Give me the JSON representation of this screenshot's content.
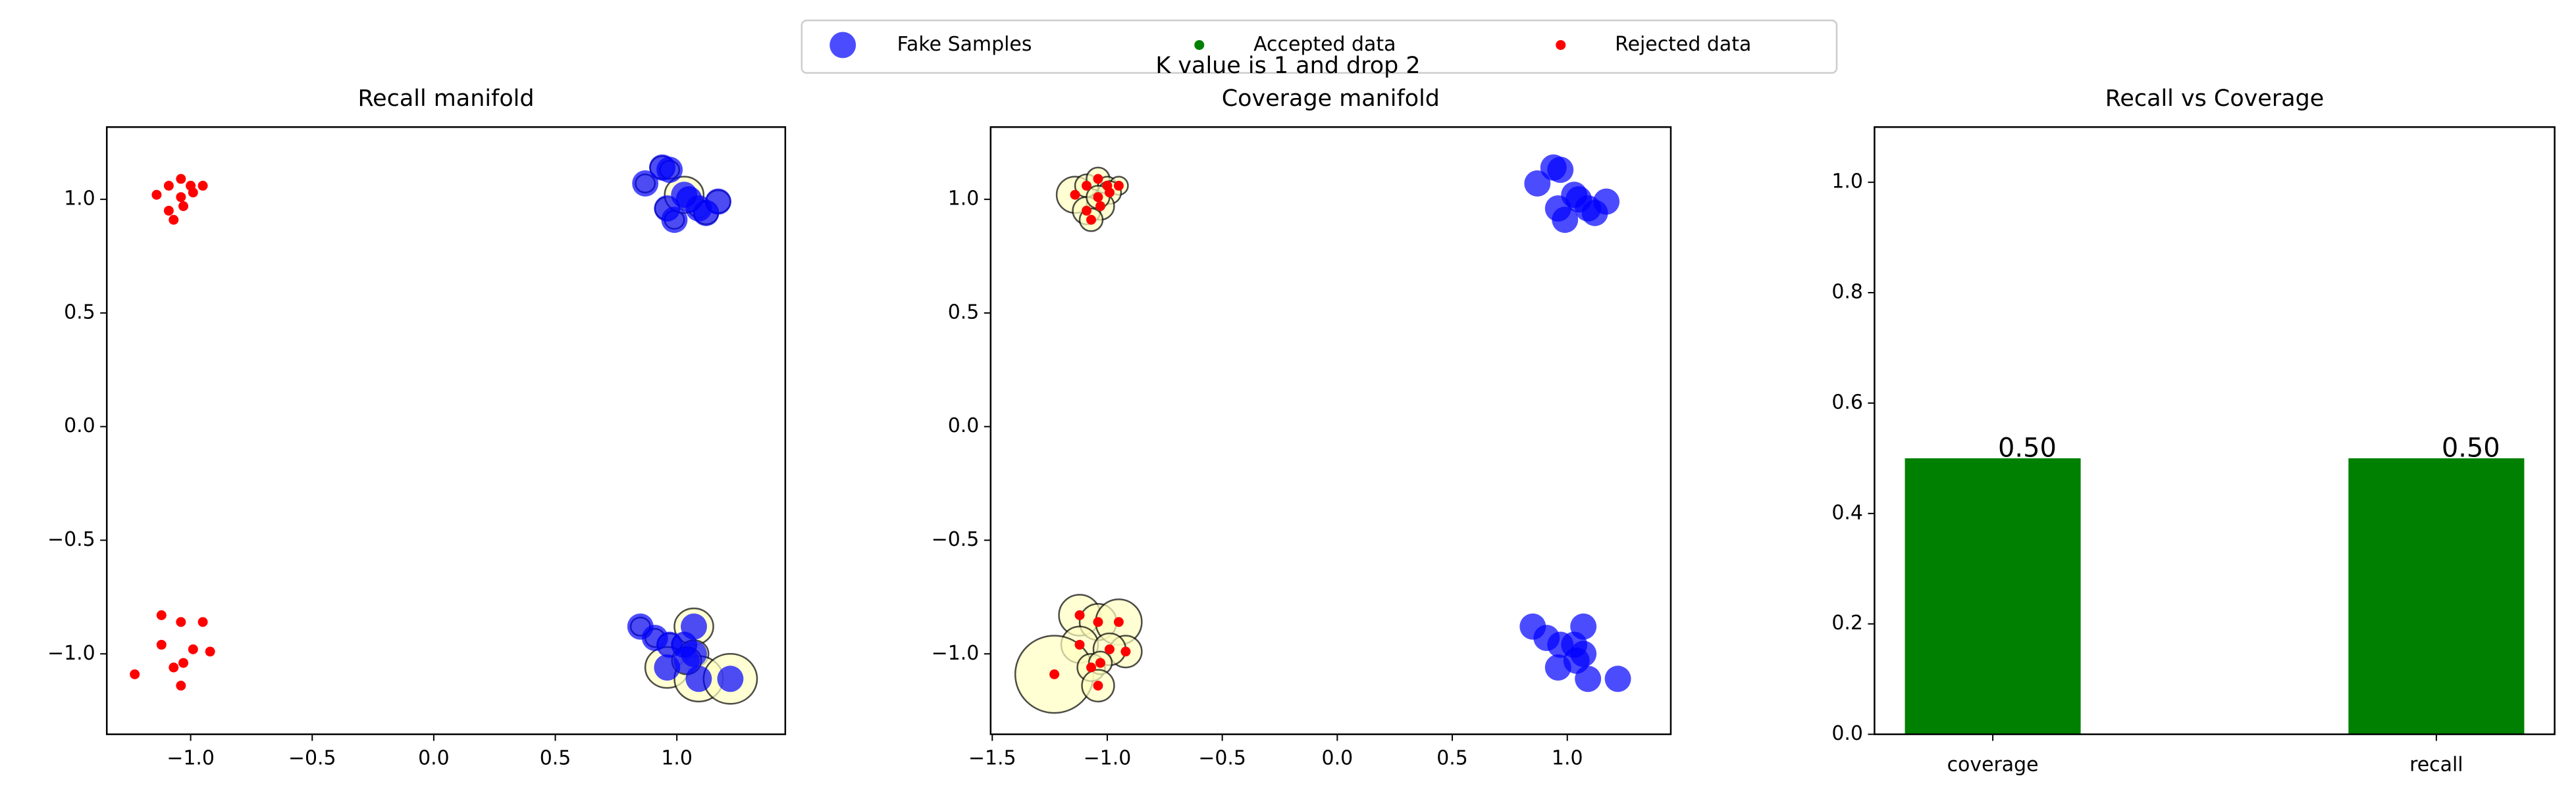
{
  "title": "K value is 1 and drop 2",
  "legend": [
    {
      "name": "Fake Samples",
      "color": "#0000ff"
    },
    {
      "name": "Accepted data",
      "color": "#008000"
    },
    {
      "name": "Rejected data",
      "color": "#ff0000"
    }
  ],
  "chart_data": [
    {
      "type": "scatter",
      "title": "Recall manifold",
      "xlim": [
        -1.345,
        1.446
      ],
      "ylim": [
        -1.354,
        1.318
      ],
      "xticks": [
        {
          "value": -1.0,
          "label": "−1.0"
        },
        {
          "value": -0.5,
          "label": "−0.5"
        },
        {
          "value": 0,
          "label": "0.0"
        },
        0.5,
        {
          "value": 1.0,
          "label": "1.0"
        }
      ],
      "yticks": [
        {
          "value": -1.0,
          "label": "−1.0"
        },
        {
          "value": -0.5,
          "label": "−0.5"
        },
        {
          "value": 0,
          "label": "0.0"
        },
        0.5,
        {
          "value": 1.0,
          "label": "1.0"
        }
      ],
      "circle_color": "#ffffc0",
      "series": [
        {
          "color": "#0000ff",
          "x": [
            0.87,
            0.94,
            0.97,
            0.96,
            1.05,
            0.99,
            1.09,
            1.12,
            1.17,
            1.03,
            0.85,
            0.91,
            0.97,
            1.03,
            1.07,
            1.07,
            0.96,
            1.09,
            1.22,
            1.04
          ],
          "y": [
            1.07,
            1.14,
            1.13,
            0.96,
            1.0,
            0.91,
            0.96,
            0.94,
            0.99,
            1.02,
            -0.88,
            -0.93,
            -0.96,
            -0.96,
            -0.88,
            -1.0,
            -1.06,
            -1.11,
            -1.11,
            -1.03
          ],
          "radii": [
            0.04,
            0.05,
            0.04,
            0.05,
            0.05,
            0.04,
            0.04,
            0.05,
            0.05,
            0.08,
            0.04,
            0.04,
            0.05,
            0.05,
            0.08,
            0.06,
            0.09,
            0.1,
            0.11,
            0.06
          ]
        },
        {
          "color": "#ff0000",
          "x": [
            -1.14,
            -1.09,
            -1.04,
            -1.0,
            -0.95,
            -0.99,
            -1.03,
            -1.09,
            -1.07,
            -1.04,
            -1.12,
            -1.04,
            -1.12,
            -0.95,
            -0.92,
            -0.99,
            -1.23,
            -1.07,
            -1.03,
            -1.04
          ],
          "y": [
            1.02,
            1.06,
            1.09,
            1.06,
            1.06,
            1.03,
            0.97,
            0.95,
            0.91,
            1.01,
            -0.83,
            -0.86,
            -0.96,
            -0.86,
            -0.99,
            -0.98,
            -1.09,
            -1.06,
            -1.04,
            -1.14
          ]
        }
      ]
    },
    {
      "type": "scatter",
      "title": "Coverage manifold",
      "xlim": [
        -1.507,
        1.45
      ],
      "ylim": [
        -1.354,
        1.318
      ],
      "xticks": [
        {
          "value": -1.5,
          "label": "−1.5"
        },
        {
          "value": -1.0,
          "label": "−1.0"
        },
        {
          "value": -0.5,
          "label": "−0.5"
        },
        {
          "value": 0,
          "label": "0.0"
        },
        0.5,
        {
          "value": 1.0,
          "label": "1.0"
        }
      ],
      "yticks": [
        {
          "value": -1.0,
          "label": "−1.0"
        },
        {
          "value": -0.5,
          "label": "−0.5"
        },
        {
          "value": 0,
          "label": "0.0"
        },
        0.5,
        {
          "value": 1.0,
          "label": "1.0"
        }
      ],
      "circle_color": "#ffffc0",
      "series": [
        {
          "color": "#0000ff",
          "x": [
            0.87,
            0.94,
            0.97,
            0.96,
            1.05,
            0.99,
            1.09,
            1.12,
            1.17,
            1.03,
            0.85,
            0.91,
            0.97,
            1.03,
            1.07,
            1.07,
            0.96,
            1.09,
            1.22,
            1.04
          ],
          "y": [
            1.07,
            1.14,
            1.13,
            0.96,
            1.0,
            0.91,
            0.96,
            0.94,
            0.99,
            1.02,
            -0.88,
            -0.93,
            -0.96,
            -0.96,
            -0.88,
            -1.0,
            -1.06,
            -1.11,
            -1.11,
            -1.03
          ]
        },
        {
          "color": "#ff0000",
          "x": [
            -1.14,
            -1.09,
            -1.04,
            -1.0,
            -0.95,
            -0.99,
            -1.03,
            -1.09,
            -1.07,
            -1.04,
            -1.12,
            -1.04,
            -1.12,
            -0.95,
            -0.92,
            -0.99,
            -1.23,
            -1.07,
            -1.03,
            -1.04
          ],
          "y": [
            1.02,
            1.06,
            1.09,
            1.06,
            1.06,
            1.03,
            0.97,
            0.95,
            0.91,
            1.01,
            -0.83,
            -0.86,
            -0.96,
            -0.86,
            -0.99,
            -0.98,
            -1.09,
            -1.06,
            -1.04,
            -1.14
          ],
          "radii": [
            0.08,
            0.05,
            0.05,
            0.04,
            0.04,
            0.05,
            0.06,
            0.06,
            0.05,
            0.05,
            0.09,
            0.08,
            0.08,
            0.1,
            0.07,
            0.07,
            0.17,
            0.06,
            0.05,
            0.07
          ]
        }
      ]
    },
    {
      "type": "bar",
      "title": "Recall vs Coverage",
      "categories": [
        "coverage",
        "recall"
      ],
      "values": [
        0.5,
        0.5
      ],
      "value_labels": [
        "0.50",
        "0.50"
      ],
      "color": "#008000",
      "ylim": [
        0,
        1.1
      ],
      "yticks": [
        {
          "value": 0,
          "label": "0.0"
        },
        0.2,
        0.4,
        0.6,
        0.8,
        {
          "value": 1.0,
          "label": "1.0"
        }
      ]
    }
  ]
}
